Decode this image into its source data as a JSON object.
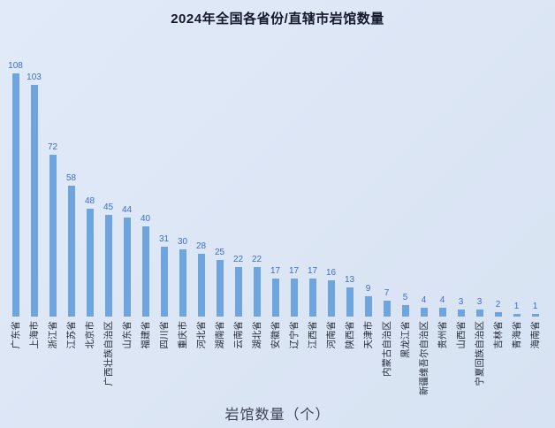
{
  "chart_data": {
    "type": "bar",
    "title": "2024年全国各省份/直辖市岩馆数量",
    "xlabel": "岩馆数量（个）",
    "ylabel": "",
    "categories": [
      "广东省",
      "上海市",
      "浙江省",
      "江苏省",
      "北京市",
      "广西壮族自治区",
      "山东省",
      "福建省",
      "四川省",
      "重庆市",
      "河北省",
      "湖南省",
      "云南省",
      "湖北省",
      "安徽省",
      "辽宁省",
      "江西省",
      "河南省",
      "陕西省",
      "天津市",
      "内蒙古自治区",
      "黑龙江省",
      "新疆维吾尔自治区",
      "贵州省",
      "山西省",
      "宁夏回族自治区",
      "吉林省",
      "青海省",
      "海南省"
    ],
    "values": [
      108,
      103,
      72,
      58,
      48,
      45,
      44,
      40,
      31,
      30,
      28,
      25,
      22,
      22,
      17,
      17,
      17,
      16,
      13,
      9,
      7,
      5,
      4,
      4,
      3,
      3,
      2,
      1,
      1
    ],
    "ylim": [
      0,
      110
    ],
    "grid": false,
    "legend": false,
    "value_labels_shown": true,
    "bar_color": "#6fa5de",
    "value_label_color": "#3a6fd0",
    "background_color": "#dbe5f4"
  }
}
